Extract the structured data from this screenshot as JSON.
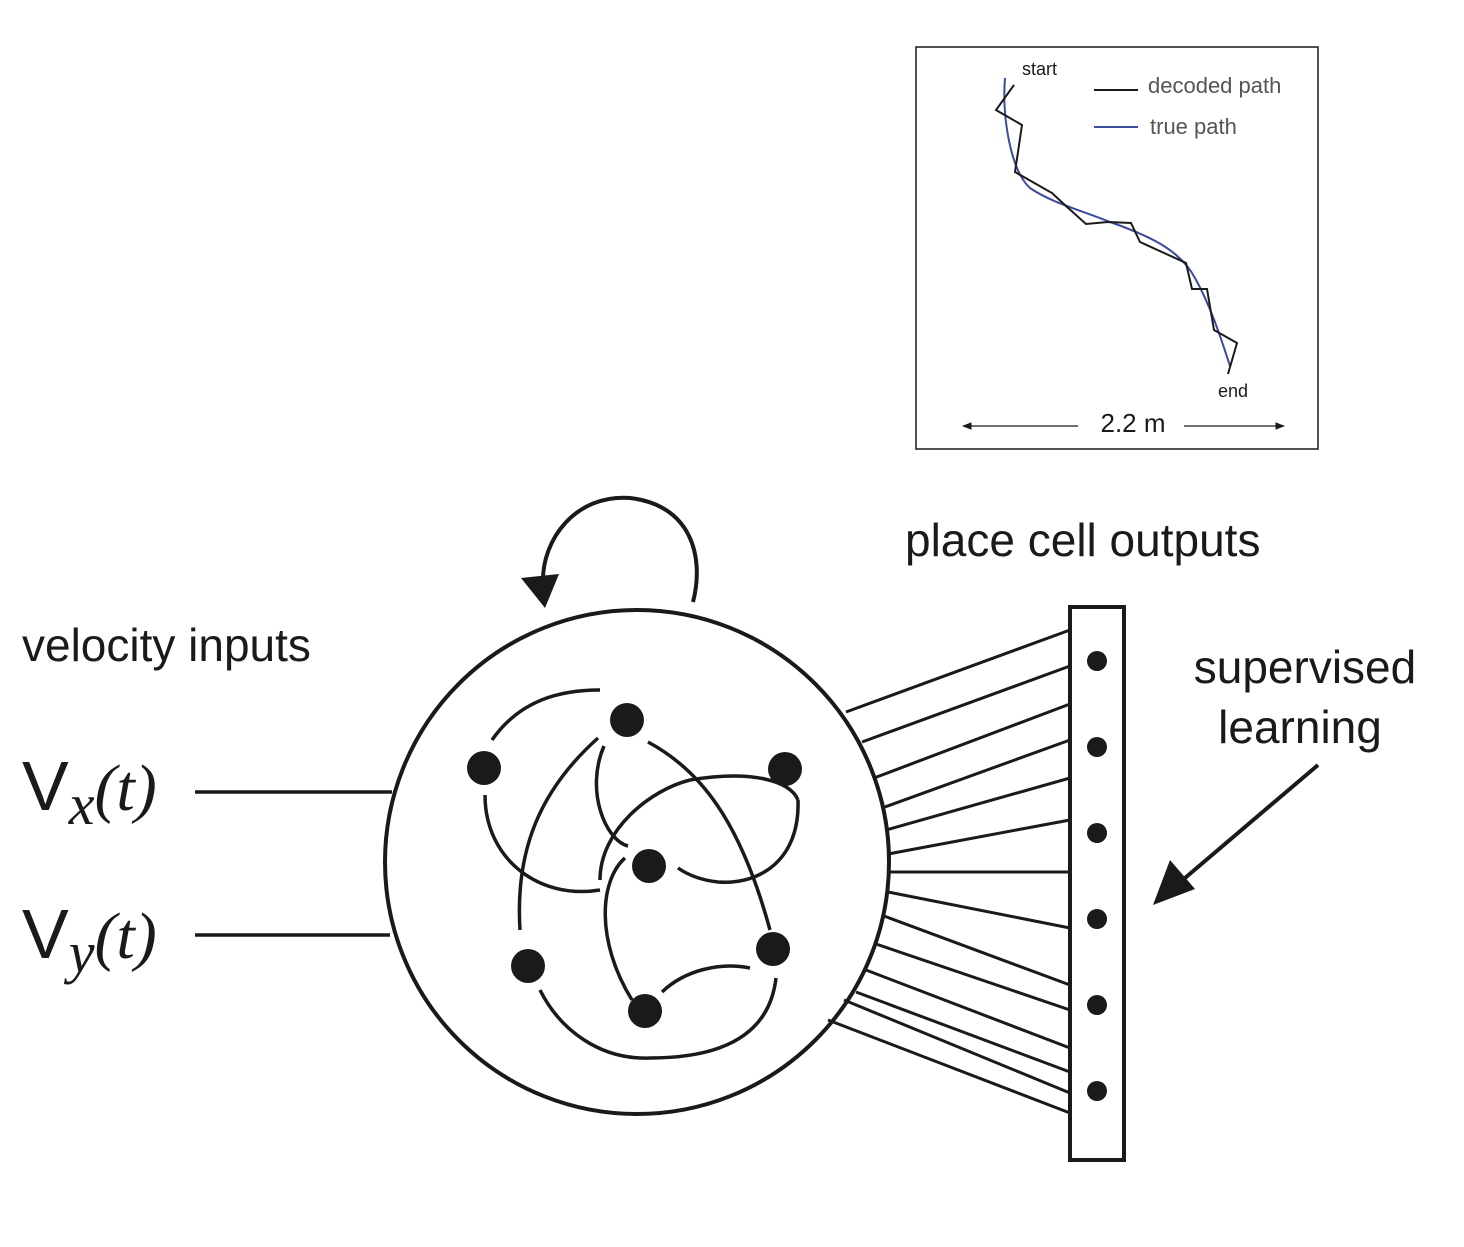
{
  "inset": {
    "start_label": "start",
    "end_label": "end",
    "legend": [
      {
        "label": "decoded path",
        "color": "#1a1a1a"
      },
      {
        "label": "true path",
        "color": "#3c4b9c"
      }
    ],
    "scale_label": "2.2 m"
  },
  "labels": {
    "velocity_inputs": "velocity inputs",
    "vx": {
      "letter": "V",
      "sub": "x",
      "arg": "(t)"
    },
    "vy": {
      "letter": "V",
      "sub": "y",
      "arg": "(t)"
    },
    "place_cell_outputs": "place cell outputs",
    "supervised_learning_line1": "supervised",
    "supervised_learning_line2": "learning"
  },
  "network": {
    "recurrent_neuron_count": 7,
    "output_unit_count": 6
  },
  "colors": {
    "ink": "#1a1a1a",
    "true_path": "#3c4b9c"
  }
}
